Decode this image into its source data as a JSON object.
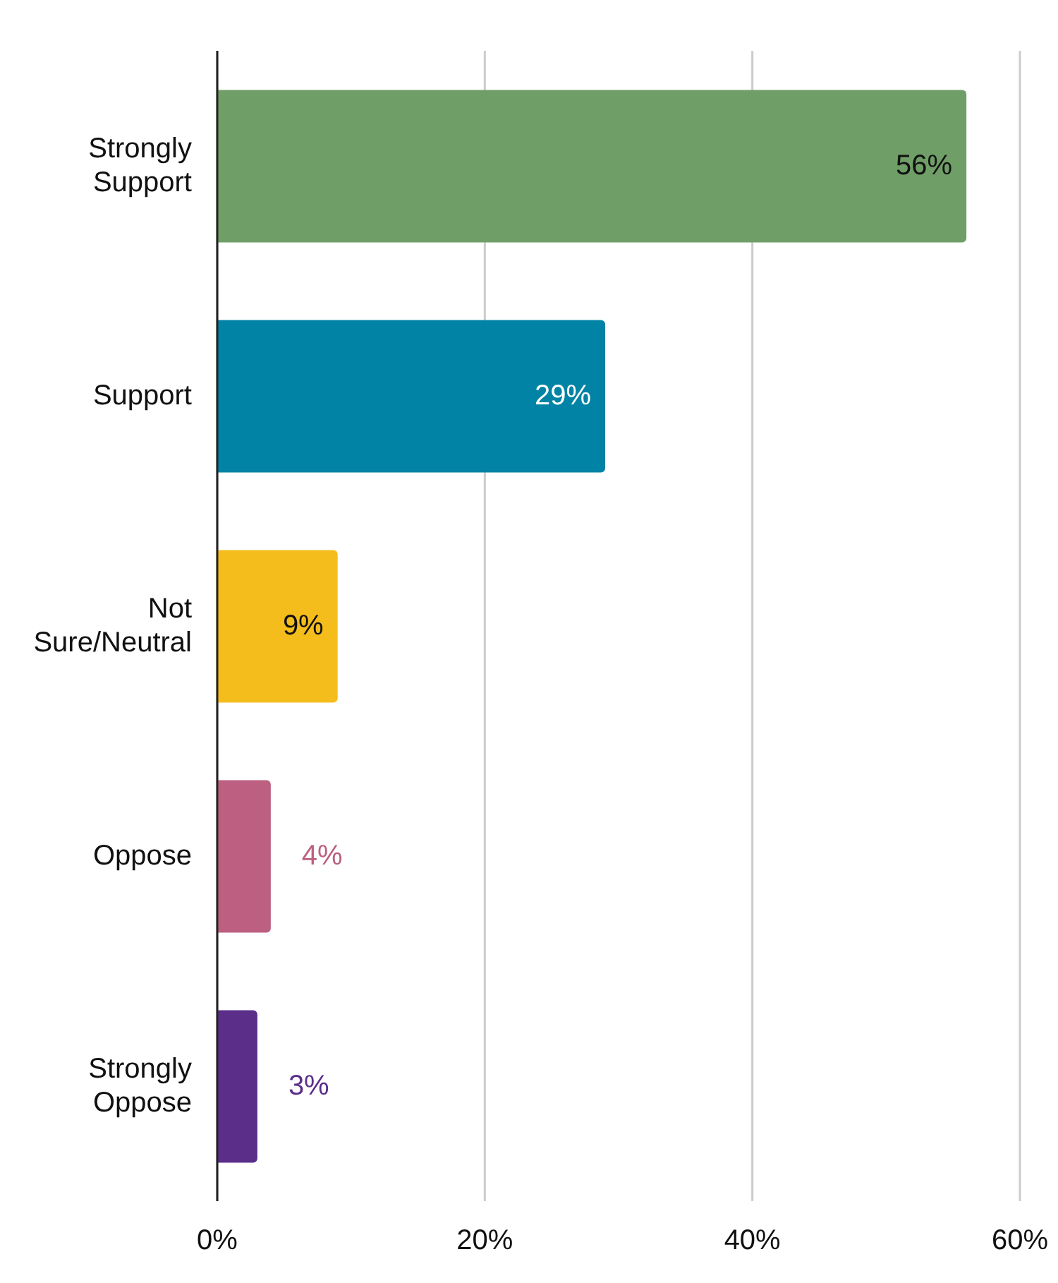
{
  "chart_data": {
    "type": "bar",
    "orientation": "horizontal",
    "categories": [
      "Strongly Support",
      "Support",
      "Not Sure/Neutral",
      "Oppose",
      "Strongly Oppose"
    ],
    "values": [
      56,
      29,
      9,
      4,
      3
    ],
    "colors": [
      "#6f9e67",
      "#0083a4",
      "#f4bd1b",
      "#bc5f80",
      "#5b2e8a"
    ],
    "value_labels": [
      "56%",
      "29%",
      "9%",
      "4%",
      "3%"
    ],
    "xlim": [
      0,
      60
    ],
    "xticks": [
      {
        "value": 0,
        "label": "0%"
      },
      {
        "value": 20,
        "label": "20%"
      },
      {
        "value": 40,
        "label": "40%"
      },
      {
        "value": 60,
        "label": "60%"
      }
    ],
    "grid": "x"
  }
}
